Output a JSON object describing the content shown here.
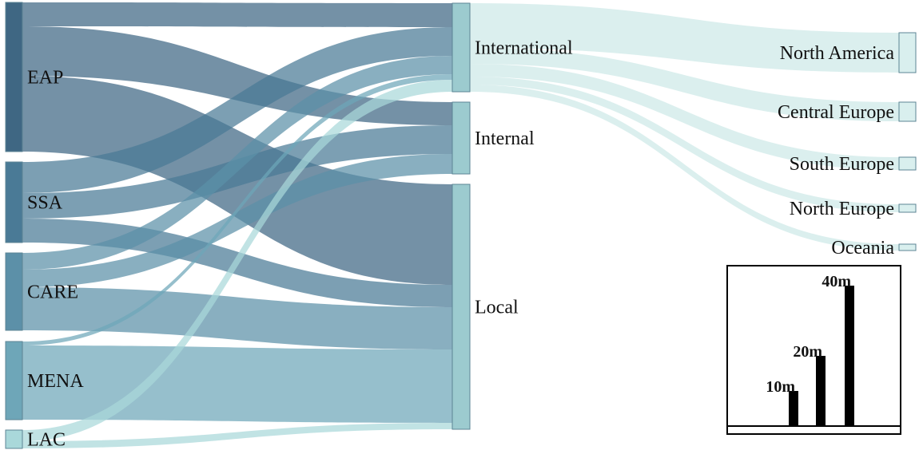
{
  "sankey": {
    "sources": [
      {
        "id": "EAP",
        "label": "EAP",
        "color": "#3f6783"
      },
      {
        "id": "SSA",
        "label": "SSA",
        "color": "#4a7a96"
      },
      {
        "id": "CARE",
        "label": "CARE",
        "color": "#5c90a8"
      },
      {
        "id": "MENA",
        "label": "MENA",
        "color": "#6ea6b8"
      },
      {
        "id": "LAC",
        "label": "LAC",
        "color": "#a9d8da"
      }
    ],
    "middle": [
      {
        "id": "International",
        "label": "International",
        "color": "#9ccbcf"
      },
      {
        "id": "Internal",
        "label": "Internal",
        "color": "#9ccbcf"
      },
      {
        "id": "Local",
        "label": "Local",
        "color": "#9ccbcf"
      }
    ],
    "destinations": [
      {
        "id": "North America",
        "label": "North America",
        "color": "#d9efee"
      },
      {
        "id": "Central Europe",
        "label": "Central Europe",
        "color": "#d9efee"
      },
      {
        "id": "South Europe",
        "label": "South Europe",
        "color": "#d9efee"
      },
      {
        "id": "North Europe",
        "label": "North Europe",
        "color": "#d9efee"
      },
      {
        "id": "Oceania",
        "label": "Oceania",
        "color": "#d9efee"
      }
    ]
  },
  "scale_legend": {
    "bars": [
      {
        "label": "10m",
        "value": 10
      },
      {
        "label": "20m",
        "value": 20
      },
      {
        "label": "40m",
        "value": 40
      }
    ]
  }
}
